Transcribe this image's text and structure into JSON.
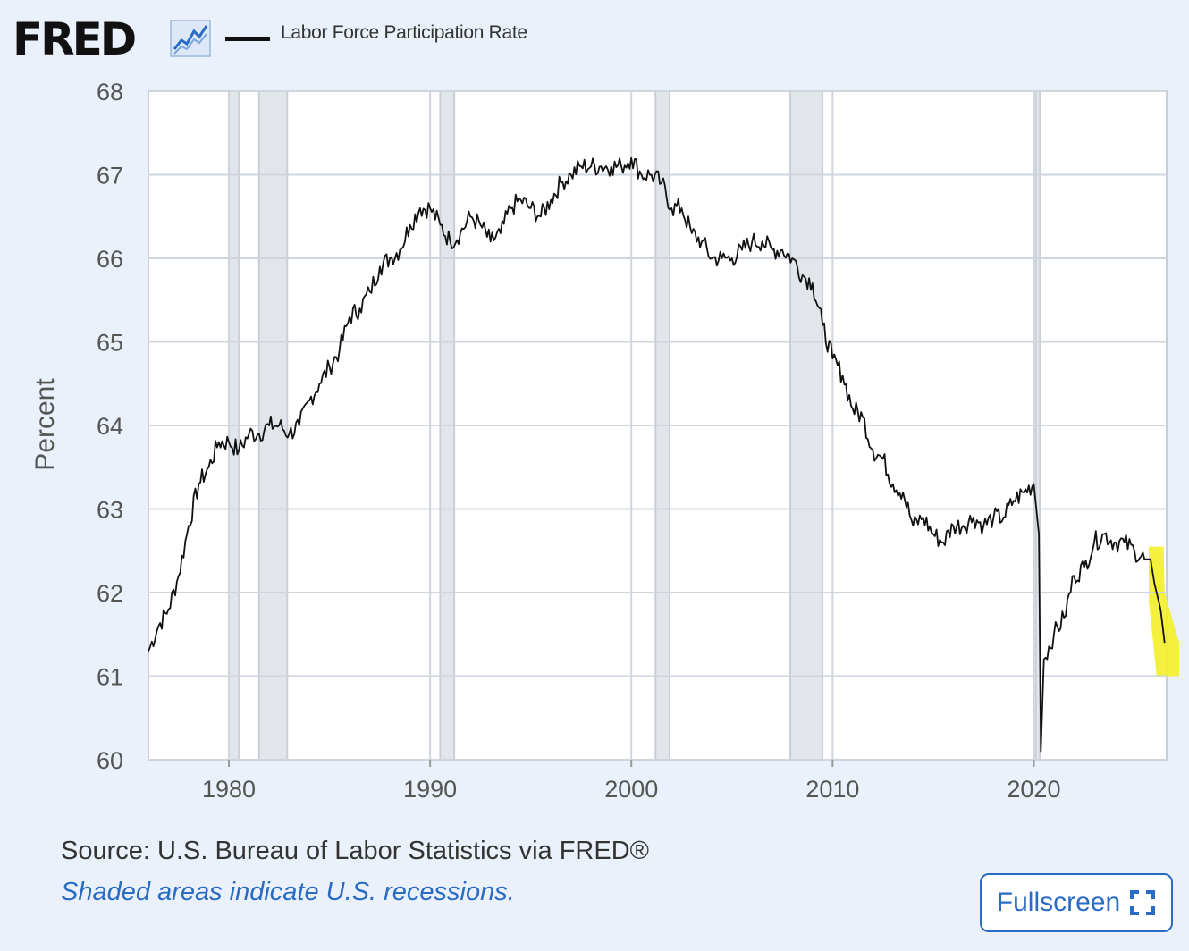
{
  "header": {
    "logo_text": "FRED",
    "logo_icon": "line-chart-icon",
    "series_label": "Labor Force Participation Rate"
  },
  "footer": {
    "source_text": "Source: U.S. Bureau of Labor Statistics via FRED®",
    "recession_note": "Shaded areas indicate U.S. recessions.",
    "fullscreen_label": "Fullscreen",
    "fullscreen_icon": "fullscreen-icon"
  },
  "colors": {
    "background": "#eaf1fa",
    "plot_background": "#ffffff",
    "line": "#111111",
    "recession_shade": "#e2e6ea",
    "highlight": "#f3f02e",
    "accent": "#2a6bc4"
  },
  "chart_data": {
    "type": "line",
    "title": "",
    "ylabel": "Percent",
    "xlabel": "",
    "xlim": [
      1976.0,
      2026.6
    ],
    "ylim": [
      60,
      68
    ],
    "x_ticks": [
      1980,
      1990,
      2000,
      2010,
      2020
    ],
    "y_ticks": [
      60,
      61,
      62,
      63,
      64,
      65,
      66,
      67,
      68
    ],
    "grid": true,
    "legend": "top-left",
    "recessions": [
      [
        1980.0,
        1980.5
      ],
      [
        1981.5,
        1982.9
      ],
      [
        1990.5,
        1991.2
      ],
      [
        2001.2,
        2001.9
      ],
      [
        2007.9,
        2009.5
      ],
      [
        2020.1,
        2020.3
      ]
    ],
    "highlight_region": [
      2025.8,
      2026.6
    ],
    "series": [
      {
        "name": "Labor Force Participation Rate",
        "x": [
          1976.0,
          1976.5,
          1977.0,
          1977.5,
          1978.0,
          1978.5,
          1979.0,
          1979.5,
          1980.0,
          1980.5,
          1981.0,
          1981.5,
          1982.0,
          1982.5,
          1983.0,
          1983.5,
          1984.0,
          1984.5,
          1985.0,
          1985.5,
          1986.0,
          1986.5,
          1987.0,
          1987.5,
          1988.0,
          1988.5,
          1989.0,
          1989.5,
          1990.0,
          1990.5,
          1991.0,
          1991.5,
          1992.0,
          1992.5,
          1993.0,
          1993.5,
          1994.0,
          1994.5,
          1995.0,
          1995.5,
          1996.0,
          1996.5,
          1997.0,
          1997.5,
          1998.0,
          1998.5,
          1999.0,
          1999.5,
          2000.0,
          2000.5,
          2001.0,
          2001.5,
          2002.0,
          2002.5,
          2003.0,
          2003.5,
          2004.0,
          2004.5,
          2005.0,
          2005.5,
          2006.0,
          2006.5,
          2007.0,
          2007.5,
          2008.0,
          2008.5,
          2009.0,
          2009.5,
          2010.0,
          2010.5,
          2011.0,
          2011.5,
          2012.0,
          2012.5,
          2013.0,
          2013.5,
          2014.0,
          2014.5,
          2015.0,
          2015.5,
          2016.0,
          2016.5,
          2017.0,
          2017.5,
          2018.0,
          2018.5,
          2019.0,
          2019.5,
          2020.0,
          2020.25,
          2020.35,
          2020.5,
          2021.0,
          2021.5,
          2022.0,
          2022.5,
          2023.0,
          2023.5,
          2024.0,
          2024.5,
          2025.0,
          2025.5,
          2025.8,
          2026.0,
          2026.3,
          2026.5
        ],
        "values": [
          61.3,
          61.6,
          61.8,
          62.2,
          62.8,
          63.3,
          63.5,
          63.8,
          63.8,
          63.7,
          63.9,
          63.9,
          64.0,
          64.0,
          63.9,
          64.0,
          64.3,
          64.5,
          64.7,
          64.9,
          65.3,
          65.4,
          65.6,
          65.9,
          66.0,
          66.1,
          66.4,
          66.6,
          66.6,
          66.4,
          66.2,
          66.3,
          66.5,
          66.4,
          66.2,
          66.3,
          66.6,
          66.7,
          66.6,
          66.5,
          66.7,
          66.9,
          67.0,
          67.1,
          67.1,
          67.1,
          67.1,
          67.1,
          67.2,
          67.0,
          67.0,
          66.9,
          66.6,
          66.6,
          66.3,
          66.2,
          66.0,
          66.0,
          66.0,
          66.1,
          66.2,
          66.2,
          66.1,
          66.1,
          66.0,
          65.8,
          65.7,
          65.2,
          64.8,
          64.6,
          64.2,
          64.1,
          63.7,
          63.6,
          63.3,
          63.2,
          62.8,
          62.9,
          62.7,
          62.6,
          62.8,
          62.8,
          62.9,
          62.8,
          62.9,
          62.9,
          63.1,
          63.2,
          63.3,
          62.7,
          60.1,
          61.2,
          61.5,
          61.7,
          62.2,
          62.3,
          62.6,
          62.7,
          62.6,
          62.6,
          62.5,
          62.4,
          62.4,
          62.1,
          61.8,
          61.4
        ]
      }
    ]
  }
}
